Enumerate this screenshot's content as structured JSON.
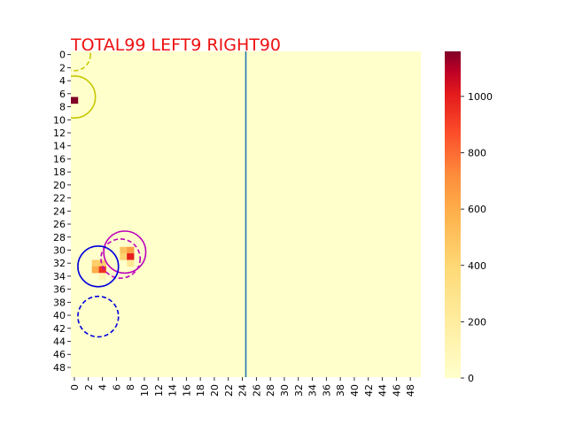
{
  "chart_data": {
    "type": "heatmap",
    "title": "TOTAL99  LEFT9 RIGHT90",
    "title_color": "#ee1111",
    "grid": {
      "rows": 50,
      "cols": 50,
      "background_value": 0
    },
    "x_ticks": [
      "0",
      "2",
      "4",
      "6",
      "8",
      "10",
      "12",
      "14",
      "16",
      "18",
      "20",
      "22",
      "24",
      "26",
      "28",
      "30",
      "32",
      "34",
      "36",
      "38",
      "40",
      "42",
      "44",
      "46",
      "48"
    ],
    "y_ticks": [
      "0",
      "2",
      "4",
      "6",
      "8",
      "10",
      "12",
      "14",
      "16",
      "18",
      "20",
      "22",
      "24",
      "26",
      "28",
      "30",
      "32",
      "34",
      "36",
      "38",
      "40",
      "42",
      "44",
      "46",
      "48"
    ],
    "cells": [
      {
        "row": 7,
        "col": 0,
        "value": 1160
      },
      {
        "row": 30,
        "col": 7,
        "value": 500
      },
      {
        "row": 30,
        "col": 8,
        "value": 650
      },
      {
        "row": 31,
        "col": 7,
        "value": 420
      },
      {
        "row": 31,
        "col": 8,
        "value": 1000
      },
      {
        "row": 32,
        "col": 8,
        "value": 250
      },
      {
        "row": 32,
        "col": 3,
        "value": 450
      },
      {
        "row": 32,
        "col": 4,
        "value": 450
      },
      {
        "row": 33,
        "col": 3,
        "value": 600
      },
      {
        "row": 33,
        "col": 4,
        "value": 950
      },
      {
        "row": 34,
        "col": 4,
        "value": 120
      }
    ],
    "colorbar": {
      "min": 0,
      "max": 1160,
      "ticks": [
        "0",
        "200",
        "400",
        "600",
        "800",
        "1000"
      ],
      "colormap": "YlOrRd"
    },
    "divider": {
      "x": 25,
      "color": "#1f77b4"
    },
    "circles": [
      {
        "cx": 0.5,
        "cy": 0.5,
        "r": 2.3,
        "color": "#c8c800",
        "style": "dashed"
      },
      {
        "cx": 0.5,
        "cy": 7.0,
        "r": 3.0,
        "color": "#c8c800",
        "style": "solid"
      },
      {
        "cx": 7.7,
        "cy": 30.8,
        "r": 3.0,
        "color": "#bb00bb",
        "style": "solid"
      },
      {
        "cx": 7.1,
        "cy": 31.8,
        "r": 2.8,
        "color": "#bb00bb",
        "style": "dashed"
      },
      {
        "cx": 3.9,
        "cy": 33.0,
        "r": 2.9,
        "color": "#0000dd",
        "style": "solid"
      },
      {
        "cx": 3.9,
        "cy": 40.7,
        "r": 2.9,
        "color": "#0000dd",
        "style": "dashed"
      }
    ]
  }
}
